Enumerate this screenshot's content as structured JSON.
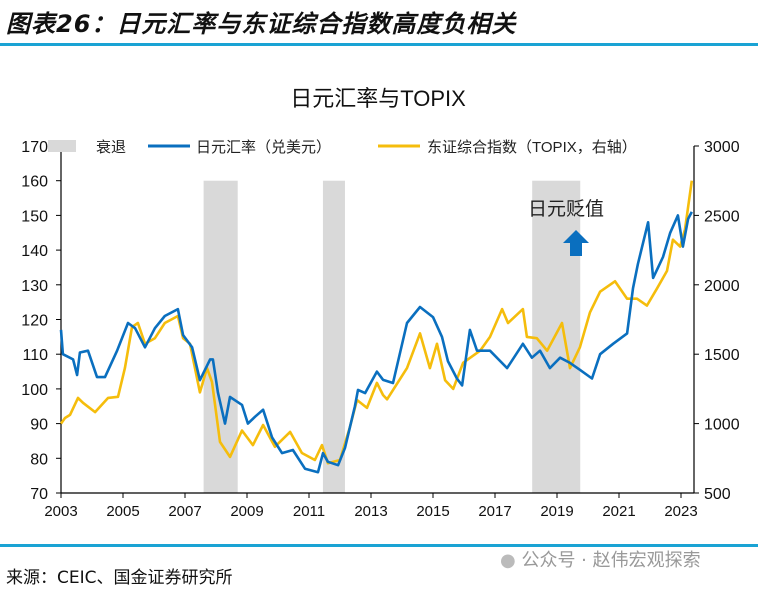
{
  "header": {
    "title": "图表26：日元汇率与东证综合指数高度负相关"
  },
  "footer": {
    "source": "来源：CEIC、国金证券研究所",
    "watermark": "公众号 · 赵伟宏观探索"
  },
  "colors": {
    "usdjpy": "#0a6fbf",
    "topix": "#f5bd0c",
    "recession": "#d9d9d9",
    "accent": "#1aa3d4"
  },
  "chart_data": {
    "type": "line",
    "title": "日元汇率与TOPIX",
    "annotation": {
      "text": "日元贬值",
      "icon": "arrow-up-icon"
    },
    "x_ticks": [
      "2003",
      "2005",
      "2007",
      "2009",
      "2011",
      "2013",
      "2015",
      "2017",
      "2019",
      "2021",
      "2023"
    ],
    "y_left": {
      "ylim": [
        70,
        170
      ],
      "ticks": [
        "70",
        "80",
        "90",
        "100",
        "110",
        "120",
        "130",
        "140",
        "150",
        "160",
        "170"
      ]
    },
    "y_right": {
      "ylim": [
        500,
        3000
      ],
      "ticks": [
        "500",
        "1000",
        "1500",
        "2000",
        "2500",
        "3000"
      ]
    },
    "legend": {
      "position": "top",
      "items": [
        "衰退",
        "日元汇率（兑美元）",
        "东证综合指数（TOPIX，右轴）"
      ]
    },
    "recessions": [
      [
        2007.6,
        2008.7
      ],
      [
        2011.45,
        2012.16
      ],
      [
        2018.2,
        2019.75
      ]
    ],
    "series": [
      {
        "name": "日元汇率（兑美元）",
        "axis": "left",
        "points": [
          [
            2003.0,
            117
          ],
          [
            2003.06,
            110
          ],
          [
            2003.39,
            108.5
          ],
          [
            2003.52,
            104
          ],
          [
            2003.61,
            110.5
          ],
          [
            2003.87,
            111
          ],
          [
            2004.16,
            103.4
          ],
          [
            2004.42,
            103.4
          ],
          [
            2004.81,
            111
          ],
          [
            2005.16,
            119
          ],
          [
            2005.39,
            117.5
          ],
          [
            2005.71,
            112
          ],
          [
            2006.03,
            117.5
          ],
          [
            2006.35,
            121
          ],
          [
            2006.77,
            123
          ],
          [
            2006.94,
            115.5
          ],
          [
            2007.23,
            112
          ],
          [
            2007.48,
            102.5
          ],
          [
            2007.81,
            108.5
          ],
          [
            2007.9,
            108.5
          ],
          [
            2008.06,
            99
          ],
          [
            2008.29,
            90
          ],
          [
            2008.45,
            97.7
          ],
          [
            2008.84,
            95.4
          ],
          [
            2009.03,
            90
          ],
          [
            2009.26,
            92
          ],
          [
            2009.52,
            94
          ],
          [
            2009.81,
            86
          ],
          [
            2010.13,
            81.5
          ],
          [
            2010.48,
            82.4
          ],
          [
            2010.87,
            77
          ],
          [
            2011.29,
            76
          ],
          [
            2011.45,
            81.5
          ],
          [
            2011.61,
            79
          ],
          [
            2011.94,
            78
          ],
          [
            2012.16,
            83
          ],
          [
            2012.48,
            95
          ],
          [
            2012.58,
            99.7
          ],
          [
            2012.81,
            98.8
          ],
          [
            2013.19,
            105
          ],
          [
            2013.39,
            102.6
          ],
          [
            2013.71,
            101.7
          ],
          [
            2014.16,
            119
          ],
          [
            2014.58,
            123.6
          ],
          [
            2015.0,
            120.7
          ],
          [
            2015.29,
            115
          ],
          [
            2015.48,
            108
          ],
          [
            2015.77,
            103
          ],
          [
            2015.94,
            101
          ],
          [
            2016.19,
            117
          ],
          [
            2016.42,
            111
          ],
          [
            2016.84,
            111
          ],
          [
            2017.39,
            106
          ],
          [
            2017.9,
            113
          ],
          [
            2018.19,
            109
          ],
          [
            2018.45,
            111
          ],
          [
            2018.77,
            106
          ],
          [
            2019.1,
            109
          ],
          [
            2019.42,
            107.5
          ],
          [
            2019.74,
            105.5
          ],
          [
            2020.13,
            103
          ],
          [
            2020.39,
            110
          ],
          [
            2020.81,
            113
          ],
          [
            2021.26,
            116
          ],
          [
            2021.45,
            129
          ],
          [
            2021.61,
            136
          ],
          [
            2021.94,
            148
          ],
          [
            2022.1,
            132
          ],
          [
            2022.26,
            135
          ],
          [
            2022.42,
            138
          ],
          [
            2022.65,
            145
          ],
          [
            2022.9,
            150
          ],
          [
            2023.06,
            141
          ],
          [
            2023.23,
            149
          ],
          [
            2023.35,
            151
          ]
        ]
      },
      {
        "name": "东证综合指数（TOPIX，右轴）",
        "axis": "right",
        "points": [
          [
            2003.0,
            1000
          ],
          [
            2003.13,
            1040
          ],
          [
            2003.29,
            1063
          ],
          [
            2003.55,
            1185
          ],
          [
            2003.71,
            1150
          ],
          [
            2004.1,
            1083
          ],
          [
            2004.52,
            1185
          ],
          [
            2004.84,
            1193
          ],
          [
            2005.06,
            1400
          ],
          [
            2005.29,
            1695
          ],
          [
            2005.48,
            1725
          ],
          [
            2005.71,
            1575
          ],
          [
            2006.03,
            1615
          ],
          [
            2006.35,
            1725
          ],
          [
            2006.77,
            1775
          ],
          [
            2006.94,
            1615
          ],
          [
            2007.16,
            1575
          ],
          [
            2007.48,
            1225
          ],
          [
            2007.71,
            1400
          ],
          [
            2007.87,
            1300
          ],
          [
            2008.13,
            868
          ],
          [
            2008.45,
            760
          ],
          [
            2008.84,
            950
          ],
          [
            2009.19,
            845
          ],
          [
            2009.52,
            990
          ],
          [
            2009.9,
            833
          ],
          [
            2010.39,
            940
          ],
          [
            2010.77,
            788
          ],
          [
            2011.19,
            738
          ],
          [
            2011.42,
            845
          ],
          [
            2011.61,
            715
          ],
          [
            2012.0,
            738
          ],
          [
            2012.32,
            975
          ],
          [
            2012.55,
            1170
          ],
          [
            2012.87,
            1113
          ],
          [
            2013.19,
            1293
          ],
          [
            2013.39,
            1205
          ],
          [
            2013.52,
            1175
          ],
          [
            2014.16,
            1400
          ],
          [
            2014.58,
            1650
          ],
          [
            2014.9,
            1400
          ],
          [
            2015.13,
            1575
          ],
          [
            2015.39,
            1313
          ],
          [
            2015.65,
            1250
          ],
          [
            2015.97,
            1438
          ],
          [
            2016.52,
            1525
          ],
          [
            2016.84,
            1625
          ],
          [
            2017.23,
            1825
          ],
          [
            2017.42,
            1725
          ],
          [
            2017.9,
            1825
          ],
          [
            2018.03,
            1625
          ],
          [
            2018.35,
            1615
          ],
          [
            2018.68,
            1525
          ],
          [
            2019.16,
            1725
          ],
          [
            2019.42,
            1400
          ],
          [
            2019.74,
            1550
          ],
          [
            2020.06,
            1800
          ],
          [
            2020.39,
            1950
          ],
          [
            2020.87,
            2025
          ],
          [
            2021.26,
            1900
          ],
          [
            2021.58,
            1900
          ],
          [
            2021.9,
            1850
          ],
          [
            2022.23,
            1975
          ],
          [
            2022.55,
            2100
          ],
          [
            2022.74,
            2325
          ],
          [
            2022.97,
            2275
          ],
          [
            2023.13,
            2400
          ],
          [
            2023.35,
            2750
          ]
        ]
      }
    ]
  }
}
